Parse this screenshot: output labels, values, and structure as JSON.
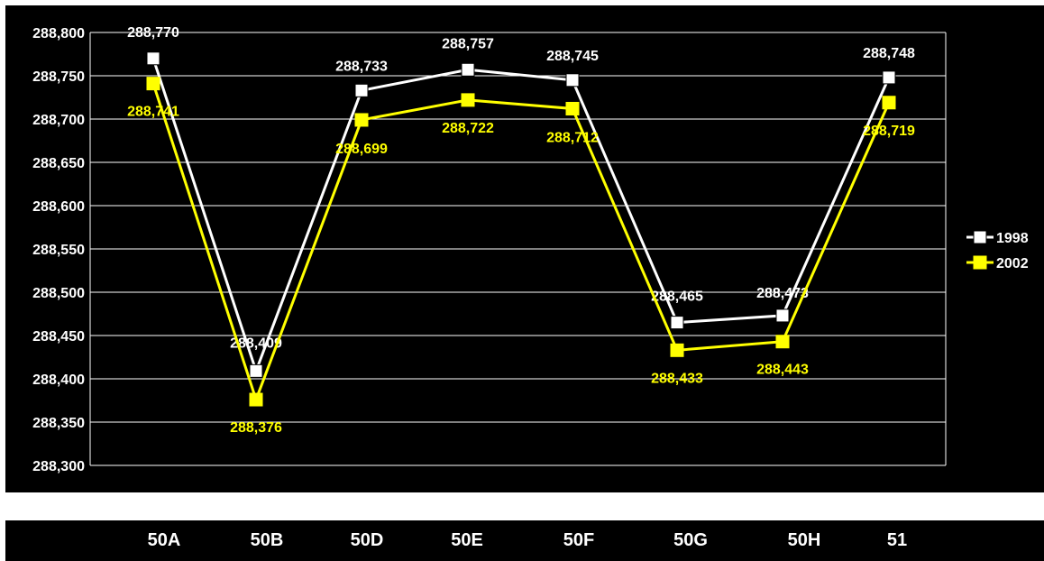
{
  "colors": {
    "background": "#000000",
    "grid": "#ffffff",
    "series_1998": "#ffffff",
    "series_2002": "#ffff00"
  },
  "chart_data": {
    "type": "line",
    "title": "",
    "xlabel": "",
    "ylabel": "",
    "categories": [
      "50A",
      "50B",
      "50D",
      "50E",
      "50F",
      "50G",
      "50H",
      "51"
    ],
    "ylim": [
      288.3,
      288.8
    ],
    "yticks": [
      "288,300",
      "288,350",
      "288,400",
      "288,450",
      "288,500",
      "288,550",
      "288,600",
      "288,650",
      "288,700",
      "288,750",
      "288,800"
    ],
    "grid": true,
    "legend": "right",
    "series": [
      {
        "name": "1998",
        "color": "#ffffff",
        "values": [
          288.77,
          288.409,
          288.733,
          288.757,
          288.745,
          288.465,
          288.473,
          288.748
        ],
        "labels": [
          "288,770",
          "288,409",
          "288,733",
          "288,757",
          "288,745",
          "288,465",
          "288,473",
          "288,748"
        ]
      },
      {
        "name": "2002",
        "color": "#ffff00",
        "values": [
          288.741,
          288.376,
          288.699,
          288.722,
          288.712,
          288.433,
          288.443,
          288.719
        ],
        "labels": [
          "288,741",
          "288,376",
          "288,699",
          "288,722",
          "288,712",
          "288,433",
          "288,443",
          "288,719"
        ]
      }
    ]
  }
}
